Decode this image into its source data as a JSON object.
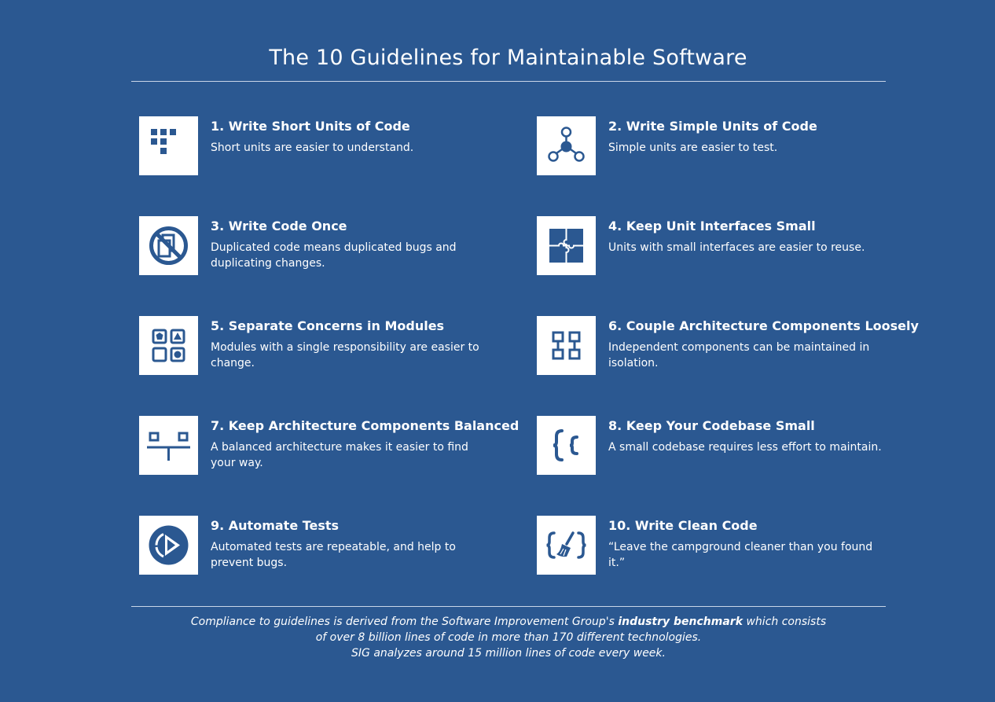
{
  "title": "The 10 Guidelines for Maintainable Software",
  "colors": {
    "background": "#2b5891",
    "icon_tile": "#ffffff",
    "icon": "#2b5891",
    "text": "#ffffff"
  },
  "guidelines": [
    {
      "title": "1. Write Short Units of Code",
      "description": "Short units are easier to understand.",
      "icon": "short-units-icon"
    },
    {
      "title": "2. Write Simple Units of Code",
      "description": "Simple units are easier to test.",
      "icon": "branching-nodes-icon"
    },
    {
      "title": "3. Write Code Once",
      "description": "Duplicated code means duplicated bugs and duplicating changes.",
      "icon": "no-duplicate-icon"
    },
    {
      "title": "4. Keep Unit Interfaces Small",
      "description": "Units with small interfaces are easier to reuse.",
      "icon": "puzzle-icon"
    },
    {
      "title": "5. Separate Concerns in Modules",
      "description": "Modules with a single responsibility are easier to change.",
      "icon": "module-shapes-icon"
    },
    {
      "title": "6. Couple Architecture Components Loosely",
      "description": "Independent components can be maintained in isolation.",
      "icon": "loose-coupling-icon"
    },
    {
      "title": "7. Keep Architecture Components Balanced",
      "description": "A balanced architecture makes it easier to find your way.",
      "icon": "balance-icon"
    },
    {
      "title": "8. Keep Your Codebase Small",
      "description": "A small codebase requires less effort to maintain.",
      "icon": "braces-icon"
    },
    {
      "title": "9. Automate Tests",
      "description": "Automated tests are repeatable, and help to prevent bugs.",
      "icon": "play-cycle-icon"
    },
    {
      "title": "10. Write Clean Code",
      "description": "“Leave the campground cleaner than you found it.”",
      "icon": "broom-braces-icon"
    }
  ],
  "footer": {
    "line1_before": "Compliance to guidelines is derived from the Software Improvement Group's ",
    "line1_bold": "industry benchmark",
    "line1_after": " which consists",
    "line2": "of over 8 billion lines of code in more than 170 different technologies.",
    "line3": "SIG analyzes around 15 million lines of code every week."
  }
}
